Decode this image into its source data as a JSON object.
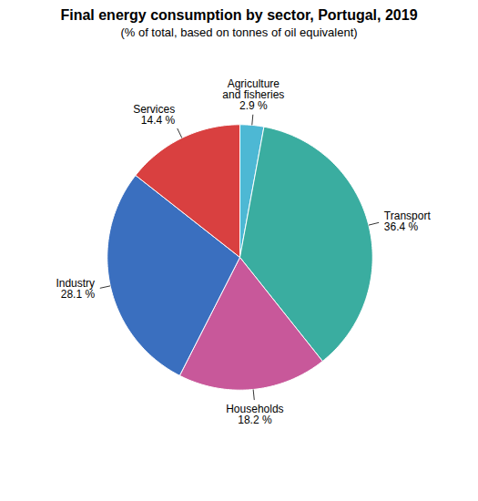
{
  "chart_data": {
    "type": "pie",
    "title": "Final energy consumption by sector, Portugal, 2019",
    "subtitle": "(% of total, based on tonnes of oil equivalent)",
    "categories": [
      "Agriculture\nand fisheries",
      "Transport",
      "Households",
      "Industry",
      "Services"
    ],
    "values": [
      2.9,
      36.4,
      18.2,
      28.1,
      14.4
    ],
    "value_labels": [
      "2.9 %",
      "36.4 %",
      "18.2 %",
      "28.1 %",
      "14.4 %"
    ],
    "colors": [
      "#4db8d4",
      "#3aada0",
      "#c8589a",
      "#3a6fbf",
      "#d94040"
    ],
    "data_labels": true
  }
}
